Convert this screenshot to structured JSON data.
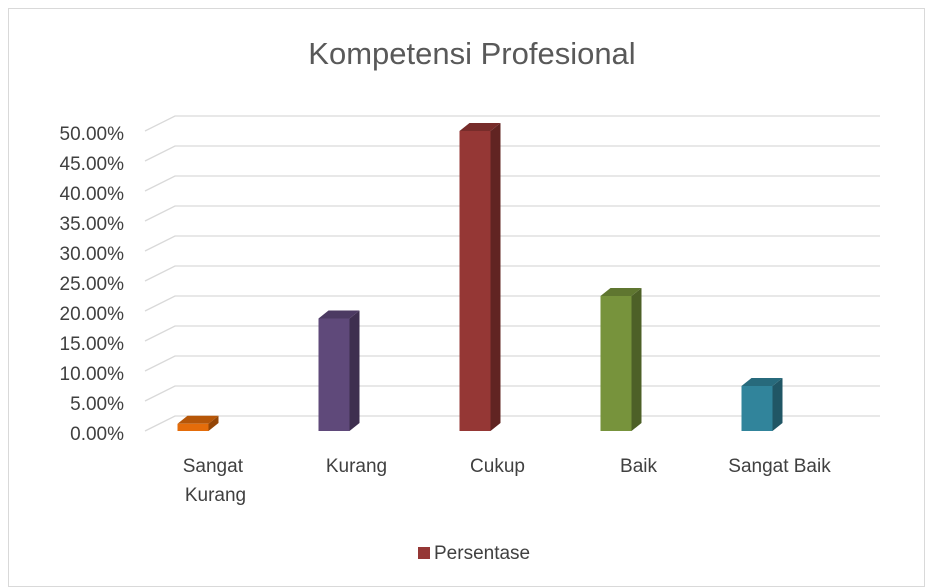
{
  "chart_data": {
    "type": "bar3d",
    "title": "Kompetensi Profesional",
    "categories": [
      "Sangat Kurang",
      "Kurang",
      "Cukup",
      "Baik",
      "Sangat Baik"
    ],
    "series": [
      {
        "name": "Persentase",
        "color": "#953735",
        "colors": [
          "#e46c0a",
          "#5f497a",
          "#953735",
          "#77933c",
          "#31849b"
        ],
        "values": [
          1.2,
          18.75,
          50,
          22.5,
          7.5
        ]
      }
    ],
    "ylim": [
      0,
      50
    ],
    "yticks": [
      {
        "value": 0,
        "label": "0.00%"
      },
      {
        "value": 5,
        "label": "5.00%"
      },
      {
        "value": 10,
        "label": "10.00%"
      },
      {
        "value": 15,
        "label": "15.00%"
      },
      {
        "value": 20,
        "label": "20.00%"
      },
      {
        "value": 25,
        "label": "25.00%"
      },
      {
        "value": 30,
        "label": "30.00%"
      },
      {
        "value": 35,
        "label": "35.00%"
      },
      {
        "value": 40,
        "label": "40.00%"
      },
      {
        "value": 45,
        "label": "45.00%"
      },
      {
        "value": 50,
        "label": "50.00%"
      }
    ],
    "grid": true,
    "legend": "bottom"
  }
}
